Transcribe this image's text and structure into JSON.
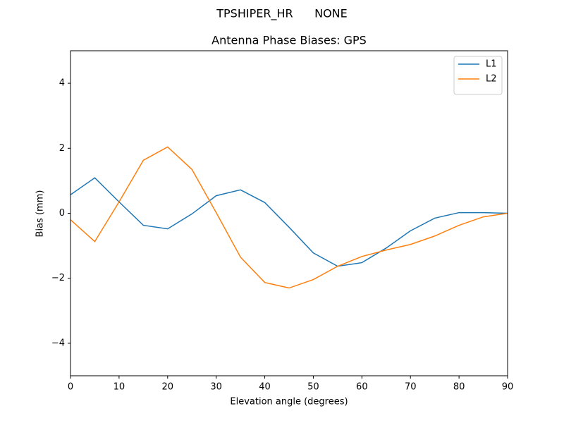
{
  "chart_data": {
    "type": "line",
    "suptitle": "TPSHIPER_HR      NONE",
    "title": "Antenna Phase Biases: GPS",
    "xlabel": "Elevation angle (degrees)",
    "ylabel": "Bias (mm)",
    "x": [
      0,
      5,
      10,
      15,
      20,
      25,
      30,
      35,
      40,
      45,
      50,
      55,
      60,
      65,
      70,
      75,
      80,
      85,
      90
    ],
    "series": [
      {
        "name": "L1",
        "color": "#1f77b4",
        "values": [
          0.57,
          1.09,
          0.35,
          -0.37,
          -0.48,
          -0.02,
          0.54,
          0.72,
          0.33,
          -0.43,
          -1.22,
          -1.63,
          -1.52,
          -1.07,
          -0.54,
          -0.15,
          0.02,
          0.02,
          0
        ]
      },
      {
        "name": "L2",
        "color": "#ff7f0e",
        "values": [
          -0.2,
          -0.87,
          0.35,
          1.63,
          2.04,
          1.35,
          0.02,
          -1.35,
          -2.13,
          -2.3,
          -2.04,
          -1.63,
          -1.33,
          -1.13,
          -0.96,
          -0.7,
          -0.37,
          -0.11,
          0
        ]
      }
    ],
    "xlim": [
      0,
      90
    ],
    "xticks": [
      0,
      10,
      20,
      30,
      40,
      50,
      60,
      70,
      80,
      90
    ],
    "ylim": [
      -5,
      5
    ],
    "yticks": [
      {
        "value": -4,
        "label": "−4"
      },
      {
        "value": -2,
        "label": "−2"
      },
      0,
      2,
      4
    ],
    "legend": "upper right",
    "grid": false
  }
}
